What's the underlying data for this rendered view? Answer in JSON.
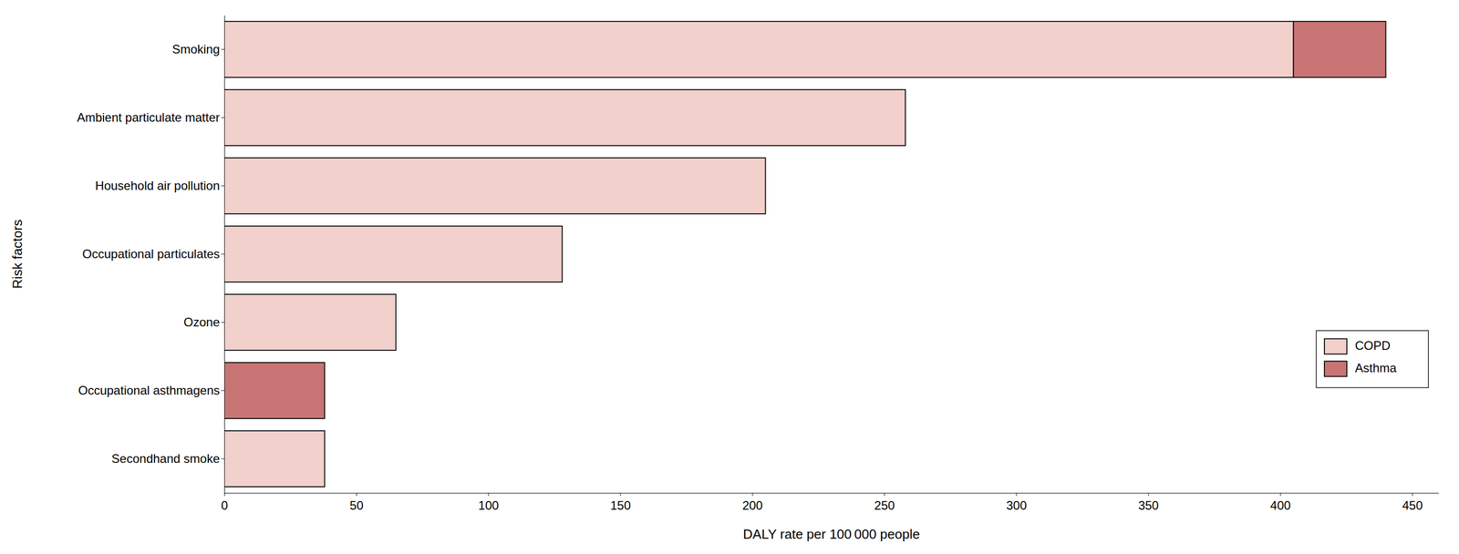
{
  "chart_data": {
    "type": "bar",
    "orientation": "horizontal",
    "stacked": true,
    "categories": [
      "Smoking",
      "Ambient particulate matter",
      "Household air pollution",
      "Occupational particulates",
      "Ozone",
      "Occupational asthmagens",
      "Secondhand smoke"
    ],
    "series": [
      {
        "name": "COPD",
        "color": "#f2d0cc",
        "values": [
          405,
          258,
          205,
          128,
          65,
          0,
          38
        ]
      },
      {
        "name": "Asthma",
        "color": "#c97474",
        "values": [
          35,
          0,
          0,
          0,
          0,
          38,
          0
        ]
      }
    ],
    "xlabel": "DALY rate per 100 000 people",
    "ylabel": "Risk factors",
    "xlim": [
      0,
      460
    ],
    "xticks": [
      0,
      50,
      100,
      150,
      200,
      250,
      300,
      350,
      400,
      450
    ],
    "grid": false,
    "legend": "right"
  }
}
